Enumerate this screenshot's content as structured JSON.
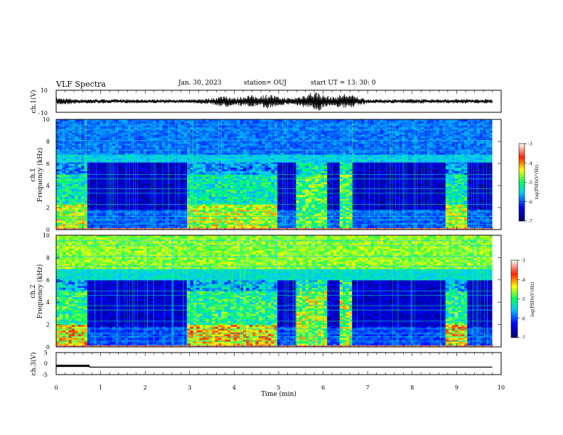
{
  "header": {
    "title": "VLF Spectra",
    "date": "Jan. 30, 2023",
    "station": "station= OUJ",
    "start": "start  UT  =   13: 30: 0"
  },
  "chart_data": [
    {
      "type": "line",
      "title": "",
      "ylabel": "ch.1(V)",
      "xlabel": "",
      "xlim": [
        0,
        10
      ],
      "ylim": [
        -10,
        10
      ],
      "yticks": [
        "10",
        "-10"
      ],
      "x": [
        0.0,
        0.5,
        1.0,
        1.5,
        2.0,
        2.5,
        3.0,
        3.5,
        3.8,
        4.0,
        4.3,
        4.5,
        4.8,
        5.0,
        5.3,
        5.5,
        5.7,
        5.9,
        6.0,
        6.2,
        6.5,
        7.0,
        8.0,
        9.0,
        9.8
      ],
      "envelope": [
        3.5,
        2.0,
        2.0,
        1.8,
        1.8,
        1.8,
        1.5,
        3.0,
        6.0,
        3.0,
        6.0,
        5.0,
        7.0,
        4.0,
        3.0,
        5.0,
        8.5,
        9.0,
        6.0,
        4.0,
        7.5,
        1.8,
        2.0,
        2.0,
        2.0
      ],
      "grid": false
    },
    {
      "type": "heatmap",
      "title": "",
      "ylabel": "ch.1\nFrequency (kHz)",
      "xlabel": "",
      "xlim": [
        0,
        10
      ],
      "ylim": [
        0,
        10
      ],
      "yticks": [
        "0",
        "2",
        "4",
        "6",
        "8",
        "10"
      ],
      "colorbar": {
        "label": "log(PSD)(V²/Hz)",
        "range": [
          -7,
          -3
        ],
        "ticks": [
          "-3",
          "-4",
          "-5",
          "-6",
          "-7"
        ]
      },
      "time_segments": [
        {
          "x": [
            0.0,
            0.72
          ],
          "state": "active"
        },
        {
          "x": [
            0.72,
            2.95
          ],
          "state": "quiet"
        },
        {
          "x": [
            2.95,
            5.0
          ],
          "state": "active"
        },
        {
          "x": [
            5.0,
            5.4
          ],
          "state": "quiet"
        },
        {
          "x": [
            5.4,
            6.1
          ],
          "state": "burst"
        },
        {
          "x": [
            6.1,
            6.35
          ],
          "state": "quiet"
        },
        {
          "x": [
            6.35,
            6.65
          ],
          "state": "burst"
        },
        {
          "x": [
            6.65,
            8.75
          ],
          "state": "quiet"
        },
        {
          "x": [
            8.75,
            9.25
          ],
          "state": "active"
        },
        {
          "x": [
            9.25,
            9.8
          ],
          "state": "quiet"
        }
      ]
    },
    {
      "type": "heatmap",
      "title": "",
      "ylabel": "ch.2\nFrequency (kHz)",
      "xlabel": "",
      "xlim": [
        0,
        10
      ],
      "ylim": [
        0,
        10
      ],
      "yticks": [
        "0",
        "2",
        "4",
        "6",
        "8",
        "10"
      ],
      "colorbar": {
        "label": "log(PSD)(V²/Hz)",
        "range": [
          -7,
          -3
        ],
        "ticks": [
          "-3",
          "-4",
          "-5",
          "-6",
          "-7"
        ]
      },
      "time_segments": [
        {
          "x": [
            0.0,
            0.72
          ],
          "state": "active"
        },
        {
          "x": [
            0.72,
            2.95
          ],
          "state": "quiet"
        },
        {
          "x": [
            2.95,
            5.0
          ],
          "state": "active"
        },
        {
          "x": [
            5.0,
            5.4
          ],
          "state": "quiet"
        },
        {
          "x": [
            5.4,
            6.1
          ],
          "state": "burst"
        },
        {
          "x": [
            6.1,
            6.35
          ],
          "state": "quiet"
        },
        {
          "x": [
            6.35,
            6.65
          ],
          "state": "burst"
        },
        {
          "x": [
            6.65,
            8.75
          ],
          "state": "quiet"
        },
        {
          "x": [
            8.75,
            9.25
          ],
          "state": "active"
        },
        {
          "x": [
            9.25,
            9.8
          ],
          "state": "quiet"
        }
      ]
    },
    {
      "type": "line",
      "title": "",
      "ylabel": "ch.3(V)",
      "xlabel": "Time (min)",
      "xlim": [
        0,
        10
      ],
      "ylim": [
        -5,
        5
      ],
      "yticks": [
        "5",
        "0",
        "-5"
      ],
      "xticks": [
        "0",
        "1",
        "2",
        "3",
        "4",
        "5",
        "6",
        "7",
        "8",
        "9",
        "10"
      ],
      "x": [
        0.0,
        0.75,
        0.75,
        9.8
      ],
      "y": [
        -1.2,
        -1.2,
        -1.6,
        -1.6
      ],
      "grid": false
    }
  ],
  "colors": {
    "quiet_bg": "#0a1a7a",
    "active_bg": "#1d3fb4",
    "upper_band_ch2": "#86e13c",
    "line": "#000000"
  }
}
